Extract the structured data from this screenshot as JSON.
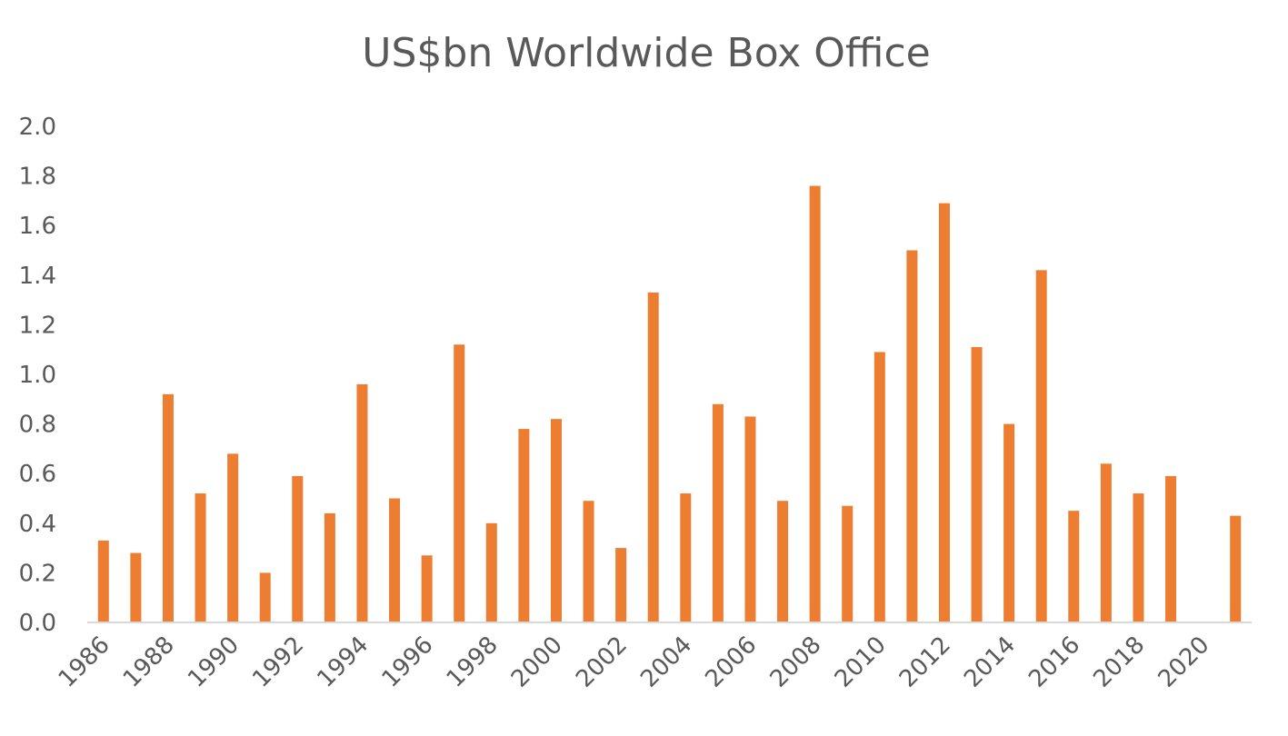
{
  "chart_data": {
    "type": "bar",
    "title": "US$bn Worldwide Box Office",
    "xlabel": "",
    "ylabel": "",
    "ylim": [
      0,
      2.0
    ],
    "y_ticks": [
      "0.0",
      "0.2",
      "0.4",
      "0.6",
      "0.8",
      "1.0",
      "1.2",
      "1.4",
      "1.6",
      "1.8",
      "2.0"
    ],
    "grid": false,
    "legend": "none",
    "bar_color": "#ED7D31",
    "categories": [
      "1986",
      "1987",
      "1988",
      "1989",
      "1990",
      "1991",
      "1992",
      "1993",
      "1994",
      "1995",
      "1996",
      "1997",
      "1998",
      "1999",
      "2000",
      "2001",
      "2002",
      "2003",
      "2004",
      "2005",
      "2006",
      "2007",
      "2008",
      "2009",
      "2010",
      "2011",
      "2012",
      "2013",
      "2014",
      "2015",
      "2016",
      "2017",
      "2018",
      "2019",
      "2020",
      "2021"
    ],
    "x_tick_labels": [
      "1986",
      "1988",
      "1990",
      "1992",
      "1994",
      "1996",
      "1998",
      "2000",
      "2002",
      "2004",
      "2006",
      "2008",
      "2010",
      "2012",
      "2014",
      "2016",
      "2018",
      "2020"
    ],
    "values": [
      0.33,
      0.28,
      0.92,
      0.52,
      0.68,
      0.2,
      0.59,
      0.44,
      0.96,
      0.5,
      0.27,
      1.12,
      0.4,
      0.78,
      0.82,
      0.49,
      0.3,
      1.33,
      0.52,
      0.88,
      0.83,
      0.49,
      1.76,
      0.47,
      1.09,
      1.5,
      1.69,
      1.11,
      0.8,
      1.42,
      0.45,
      0.64,
      0.52,
      0.59,
      0,
      0.43
    ]
  }
}
